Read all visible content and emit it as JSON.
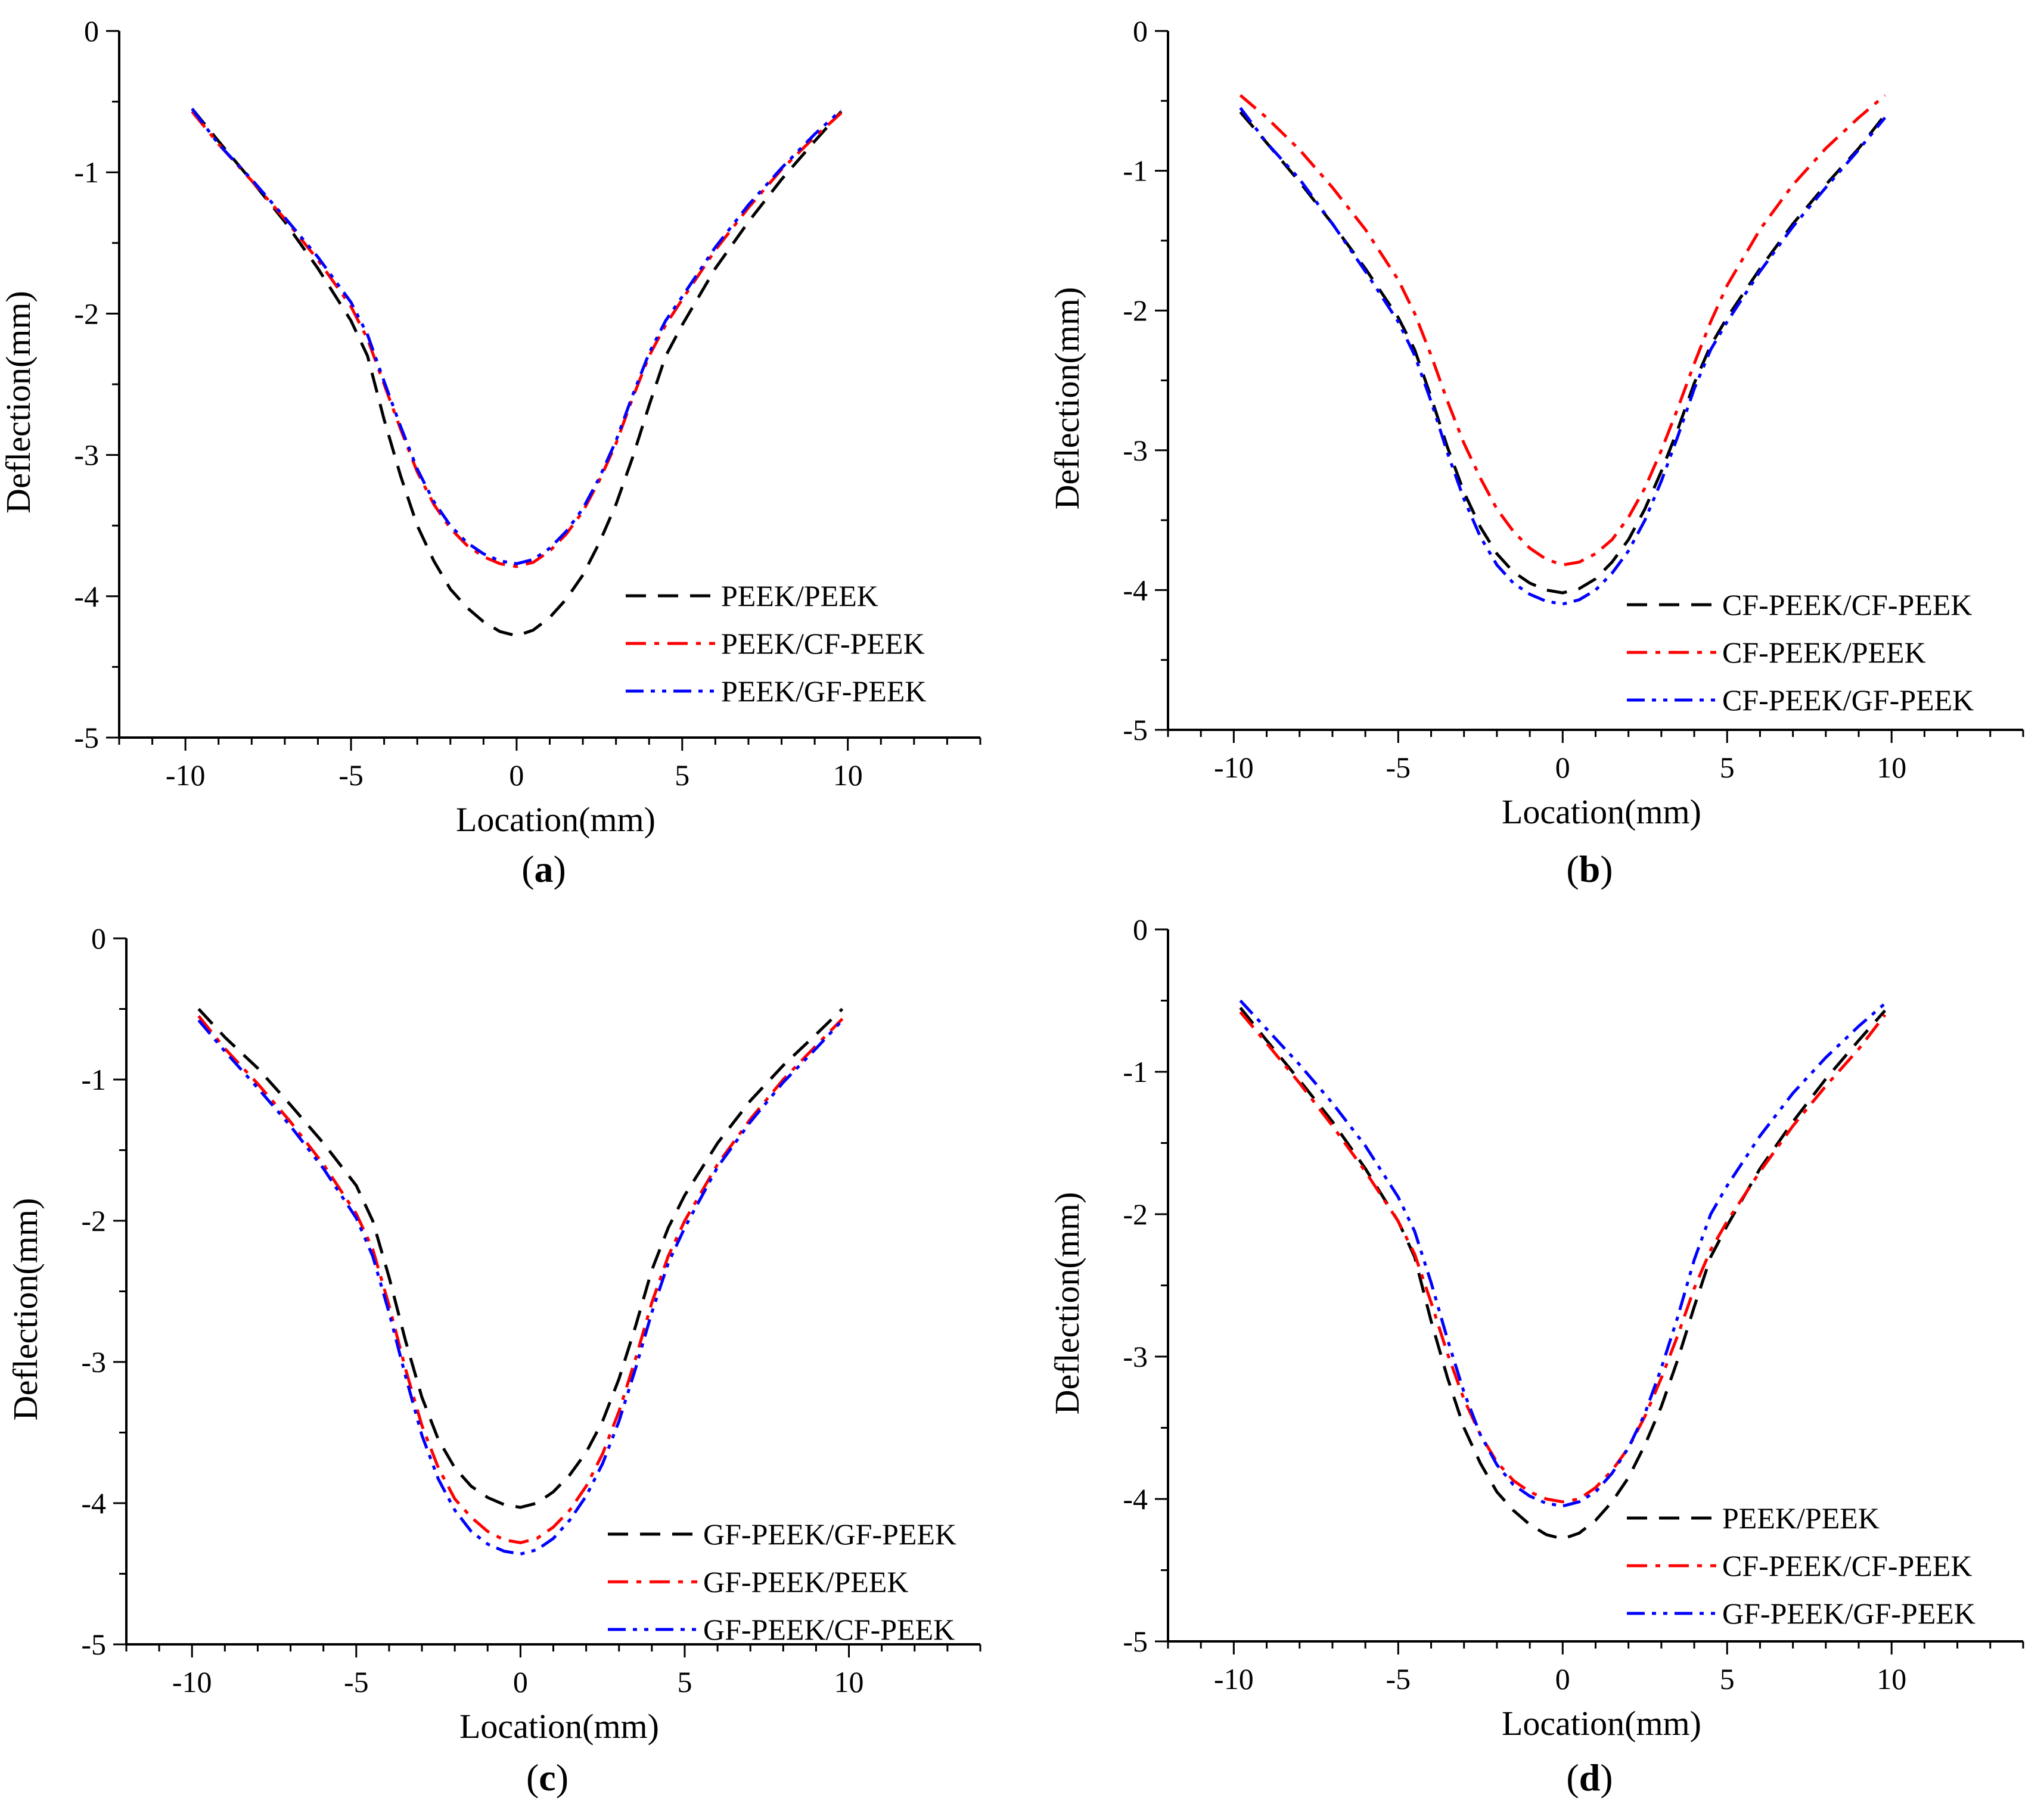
{
  "chart_data": [
    {
      "type": "line",
      "panel_label": "a",
      "xlabel": "Location(mm)",
      "ylabel": "Deflection(mm)",
      "xlim": [
        -12,
        14
      ],
      "ylim": [
        -5,
        0
      ],
      "xticks": [
        -10,
        -5,
        0,
        5,
        10
      ],
      "yticks": [
        0,
        -1,
        -2,
        -3,
        -4,
        -5
      ],
      "legend_position": "lower-right",
      "series": [
        {
          "name": "PEEK/PEEK",
          "color": "#000000",
          "dash": "dash",
          "x": [
            -9.8,
            -9,
            -8,
            -7,
            -6,
            -5,
            -4.5,
            -4,
            -3.5,
            -3,
            -2.5,
            -2,
            -1.5,
            -1,
            -0.5,
            0,
            0.5,
            1,
            1.5,
            2,
            2.5,
            3,
            3.5,
            4,
            4.5,
            5,
            6,
            7,
            8,
            9,
            9.8
          ],
          "y": [
            -0.55,
            -0.78,
            -1.06,
            -1.35,
            -1.68,
            -2.05,
            -2.3,
            -2.75,
            -3.15,
            -3.5,
            -3.75,
            -3.95,
            -4.08,
            -4.18,
            -4.25,
            -4.28,
            -4.24,
            -4.15,
            -4.02,
            -3.85,
            -3.62,
            -3.35,
            -3.02,
            -2.65,
            -2.3,
            -2.08,
            -1.68,
            -1.35,
            -1.05,
            -0.78,
            -0.57
          ]
        },
        {
          "name": "PEEK/CF-PEEK",
          "color": "#ff0000",
          "dash": "dashdot",
          "x": [
            -9.8,
            -9,
            -8,
            -7,
            -6,
            -5,
            -4.5,
            -4,
            -3.5,
            -3,
            -2.5,
            -2,
            -1.5,
            -1,
            -0.5,
            0,
            0.5,
            1,
            1.5,
            2,
            2.5,
            3,
            3.5,
            4,
            4.5,
            5,
            6,
            7,
            8,
            9,
            9.8
          ],
          "y": [
            -0.57,
            -0.8,
            -1.06,
            -1.33,
            -1.62,
            -1.95,
            -2.18,
            -2.5,
            -2.82,
            -3.12,
            -3.35,
            -3.52,
            -3.64,
            -3.72,
            -3.77,
            -3.79,
            -3.76,
            -3.68,
            -3.56,
            -3.4,
            -3.18,
            -2.92,
            -2.6,
            -2.3,
            -2.08,
            -1.9,
            -1.55,
            -1.25,
            -0.98,
            -0.75,
            -0.58
          ]
        },
        {
          "name": "PEEK/GF-PEEK",
          "color": "#0000ff",
          "dash": "dashdotdot",
          "x": [
            -9.8,
            -9,
            -8,
            -7,
            -6,
            -5,
            -4.5,
            -4,
            -3.5,
            -3,
            -2.5,
            -2,
            -1.5,
            -1,
            -0.5,
            0,
            0.5,
            1,
            1.5,
            2,
            2.5,
            3,
            3.5,
            4,
            4.5,
            5,
            6,
            7,
            8,
            9,
            9.8
          ],
          "y": [
            -0.55,
            -0.8,
            -1.05,
            -1.32,
            -1.6,
            -1.92,
            -2.15,
            -2.48,
            -2.8,
            -3.1,
            -3.33,
            -3.5,
            -3.62,
            -3.7,
            -3.75,
            -3.77,
            -3.74,
            -3.66,
            -3.54,
            -3.38,
            -3.16,
            -2.9,
            -2.58,
            -2.28,
            -2.05,
            -1.88,
            -1.53,
            -1.23,
            -0.97,
            -0.73,
            -0.56
          ]
        }
      ]
    },
    {
      "type": "line",
      "panel_label": "b",
      "xlabel": "Location(mm)",
      "ylabel": "Deflection(mm)",
      "xlim": [
        -12,
        14
      ],
      "ylim": [
        -5,
        0
      ],
      "xticks": [
        -10,
        -5,
        0,
        5,
        10
      ],
      "yticks": [
        0,
        -1,
        -2,
        -3,
        -4,
        -5
      ],
      "legend_position": "lower-right",
      "series": [
        {
          "name": "CF-PEEK/CF-PEEK",
          "color": "#000000",
          "dash": "dash",
          "x": [
            -9.8,
            -9,
            -8,
            -7,
            -6,
            -5,
            -4.5,
            -4,
            -3.5,
            -3,
            -2.5,
            -2,
            -1.5,
            -1,
            -0.5,
            0,
            0.5,
            1,
            1.5,
            2,
            2.5,
            3,
            3.5,
            4,
            4.5,
            5,
            6,
            7,
            8,
            9,
            9.8
          ],
          "y": [
            -0.58,
            -0.8,
            -1.08,
            -1.38,
            -1.7,
            -2.05,
            -2.28,
            -2.62,
            -2.98,
            -3.3,
            -3.55,
            -3.74,
            -3.87,
            -3.95,
            -4.0,
            -4.02,
            -3.99,
            -3.92,
            -3.8,
            -3.64,
            -3.42,
            -3.15,
            -2.85,
            -2.52,
            -2.25,
            -2.05,
            -1.7,
            -1.38,
            -1.1,
            -0.84,
            -0.6
          ]
        },
        {
          "name": "CF-PEEK/PEEK",
          "color": "#ff0000",
          "dash": "dashdot",
          "x": [
            -9.8,
            -9,
            -8,
            -7,
            -6,
            -5,
            -4.5,
            -4,
            -3.5,
            -3,
            -2.5,
            -2,
            -1.5,
            -1,
            -0.5,
            0,
            0.5,
            1,
            1.5,
            2,
            2.5,
            3,
            3.5,
            4,
            4.5,
            5,
            6,
            7,
            8,
            9,
            9.8
          ],
          "y": [
            -0.46,
            -0.62,
            -0.85,
            -1.12,
            -1.42,
            -1.78,
            -2.02,
            -2.32,
            -2.65,
            -2.95,
            -3.2,
            -3.42,
            -3.58,
            -3.7,
            -3.78,
            -3.82,
            -3.8,
            -3.74,
            -3.64,
            -3.48,
            -3.27,
            -3.0,
            -2.7,
            -2.38,
            -2.08,
            -1.82,
            -1.42,
            -1.1,
            -0.84,
            -0.62,
            -0.46
          ]
        },
        {
          "name": "CF-PEEK/GF-PEEK",
          "color": "#0000ff",
          "dash": "dashdotdot",
          "x": [
            -9.8,
            -9,
            -8,
            -7,
            -6,
            -5,
            -4.5,
            -4,
            -3.5,
            -3,
            -2.5,
            -2,
            -1.5,
            -1,
            -0.5,
            0,
            0.5,
            1,
            1.5,
            2,
            2.5,
            3,
            3.5,
            4,
            4.5,
            5,
            6,
            7,
            8,
            9,
            9.8
          ],
          "y": [
            -0.55,
            -0.8,
            -1.06,
            -1.38,
            -1.72,
            -2.08,
            -2.32,
            -2.65,
            -3.02,
            -3.35,
            -3.62,
            -3.82,
            -3.95,
            -4.03,
            -4.08,
            -4.1,
            -4.07,
            -4.0,
            -3.88,
            -3.72,
            -3.5,
            -3.22,
            -2.9,
            -2.56,
            -2.28,
            -2.08,
            -1.72,
            -1.4,
            -1.12,
            -0.85,
            -0.62
          ]
        }
      ]
    },
    {
      "type": "line",
      "panel_label": "c",
      "xlabel": "Location(mm)",
      "ylabel": "Deflection(mm)",
      "xlim": [
        -12,
        14
      ],
      "ylim": [
        -5,
        0
      ],
      "xticks": [
        -10,
        -5,
        0,
        5,
        10
      ],
      "yticks": [
        0,
        -1,
        -2,
        -3,
        -4,
        -5
      ],
      "legend_position": "lower-right",
      "series": [
        {
          "name": "GF-PEEK/GF-PEEK",
          "color": "#000000",
          "dash": "dash",
          "x": [
            -9.8,
            -9,
            -8,
            -7,
            -6,
            -5,
            -4.5,
            -4,
            -3.5,
            -3,
            -2.5,
            -2,
            -1.5,
            -1,
            -0.5,
            0,
            0.5,
            1,
            1.5,
            2,
            2.5,
            3,
            3.5,
            4,
            4.5,
            5,
            6,
            7,
            8,
            9,
            9.8
          ],
          "y": [
            -0.5,
            -0.7,
            -0.92,
            -1.18,
            -1.45,
            -1.75,
            -2.0,
            -2.4,
            -2.85,
            -3.25,
            -3.55,
            -3.75,
            -3.88,
            -3.96,
            -4.01,
            -4.03,
            -4.0,
            -3.92,
            -3.8,
            -3.64,
            -3.42,
            -3.12,
            -2.75,
            -2.35,
            -2.05,
            -1.82,
            -1.45,
            -1.15,
            -0.9,
            -0.68,
            -0.5
          ]
        },
        {
          "name": "GF-PEEK/PEEK",
          "color": "#ff0000",
          "dash": "dashdot",
          "x": [
            -9.8,
            -9,
            -8,
            -7,
            -6,
            -5,
            -4.5,
            -4,
            -3.5,
            -3,
            -2.5,
            -2,
            -1.5,
            -1,
            -0.5,
            0,
            0.5,
            1,
            1.5,
            2,
            2.5,
            3,
            3.5,
            4,
            4.5,
            5,
            6,
            7,
            8,
            9,
            9.8
          ],
          "y": [
            -0.55,
            -0.78,
            -1.03,
            -1.3,
            -1.6,
            -1.95,
            -2.2,
            -2.6,
            -3.05,
            -3.45,
            -3.75,
            -3.97,
            -4.1,
            -4.2,
            -4.26,
            -4.28,
            -4.25,
            -4.17,
            -4.05,
            -3.88,
            -3.65,
            -3.35,
            -2.98,
            -2.58,
            -2.25,
            -2.0,
            -1.6,
            -1.28,
            -1.0,
            -0.76,
            -0.57
          ]
        },
        {
          "name": "GF-PEEK/CF-PEEK",
          "color": "#0000ff",
          "dash": "dashdotdot",
          "x": [
            -9.8,
            -9,
            -8,
            -7,
            -6,
            -5,
            -4.5,
            -4,
            -3.5,
            -3,
            -2.5,
            -2,
            -1.5,
            -1,
            -0.5,
            0,
            0.5,
            1,
            1.5,
            2,
            2.5,
            3,
            3.5,
            4,
            4.5,
            5,
            6,
            7,
            8,
            9,
            9.8
          ],
          "y": [
            -0.58,
            -0.8,
            -1.06,
            -1.33,
            -1.63,
            -1.98,
            -2.25,
            -2.65,
            -3.1,
            -3.52,
            -3.83,
            -4.05,
            -4.2,
            -4.29,
            -4.34,
            -4.36,
            -4.33,
            -4.25,
            -4.12,
            -3.95,
            -3.72,
            -3.42,
            -3.05,
            -2.65,
            -2.3,
            -2.05,
            -1.62,
            -1.3,
            -1.02,
            -0.78,
            -0.58
          ]
        }
      ]
    },
    {
      "type": "line",
      "panel_label": "d",
      "xlabel": "Location(mm)",
      "ylabel": "Deflection(mm)",
      "xlim": [
        -12,
        14
      ],
      "ylim": [
        -5,
        0
      ],
      "xticks": [
        -10,
        -5,
        0,
        5,
        10
      ],
      "yticks": [
        0,
        -1,
        -2,
        -3,
        -4,
        -5
      ],
      "legend_position": "lower-right",
      "series": [
        {
          "name": "PEEK/PEEK",
          "color": "#000000",
          "dash": "dash",
          "x": [
            -9.8,
            -9,
            -8,
            -7,
            -6,
            -5,
            -4.5,
            -4,
            -3.5,
            -3,
            -2.5,
            -2,
            -1.5,
            -1,
            -0.5,
            0,
            0.5,
            1,
            1.5,
            2,
            2.5,
            3,
            3.5,
            4,
            4.5,
            5,
            6,
            7,
            8,
            9,
            9.8
          ],
          "y": [
            -0.55,
            -0.78,
            -1.06,
            -1.35,
            -1.68,
            -2.05,
            -2.3,
            -2.75,
            -3.15,
            -3.5,
            -3.75,
            -3.95,
            -4.08,
            -4.18,
            -4.25,
            -4.28,
            -4.24,
            -4.15,
            -4.02,
            -3.85,
            -3.62,
            -3.35,
            -3.02,
            -2.65,
            -2.3,
            -2.08,
            -1.68,
            -1.35,
            -1.05,
            -0.78,
            -0.57
          ]
        },
        {
          "name": "CF-PEEK/CF-PEEK",
          "color": "#ff0000",
          "dash": "dashdot",
          "x": [
            -9.8,
            -9,
            -8,
            -7,
            -6,
            -5,
            -4.5,
            -4,
            -3.5,
            -3,
            -2.5,
            -2,
            -1.5,
            -1,
            -0.5,
            0,
            0.5,
            1,
            1.5,
            2,
            2.5,
            3,
            3.5,
            4,
            4.5,
            5,
            6,
            7,
            8,
            9,
            9.8
          ],
          "y": [
            -0.58,
            -0.8,
            -1.08,
            -1.38,
            -1.7,
            -2.05,
            -2.28,
            -2.62,
            -2.98,
            -3.3,
            -3.55,
            -3.74,
            -3.87,
            -3.95,
            -4.0,
            -4.02,
            -4.0,
            -3.92,
            -3.8,
            -3.64,
            -3.42,
            -3.15,
            -2.85,
            -2.52,
            -2.25,
            -2.05,
            -1.7,
            -1.38,
            -1.1,
            -0.84,
            -0.6
          ]
        },
        {
          "name": "GF-PEEK/GF-PEEK",
          "color": "#0000ff",
          "dash": "dashdotdot",
          "x": [
            -9.8,
            -9,
            -8,
            -7,
            -6,
            -5,
            -4.5,
            -4,
            -3.5,
            -3,
            -2.5,
            -2,
            -1.5,
            -1,
            -0.5,
            0,
            0.5,
            1,
            1.5,
            2,
            2.5,
            3,
            3.5,
            4,
            4.5,
            5,
            6,
            7,
            8,
            9,
            9.8
          ],
          "y": [
            -0.5,
            -0.7,
            -0.95,
            -1.22,
            -1.52,
            -1.88,
            -2.12,
            -2.48,
            -2.88,
            -3.25,
            -3.55,
            -3.76,
            -3.9,
            -3.98,
            -4.03,
            -4.05,
            -4.02,
            -3.95,
            -3.82,
            -3.64,
            -3.4,
            -3.08,
            -2.72,
            -2.32,
            -2.0,
            -1.8,
            -1.45,
            -1.15,
            -0.9,
            -0.68,
            -0.52
          ]
        }
      ]
    }
  ]
}
